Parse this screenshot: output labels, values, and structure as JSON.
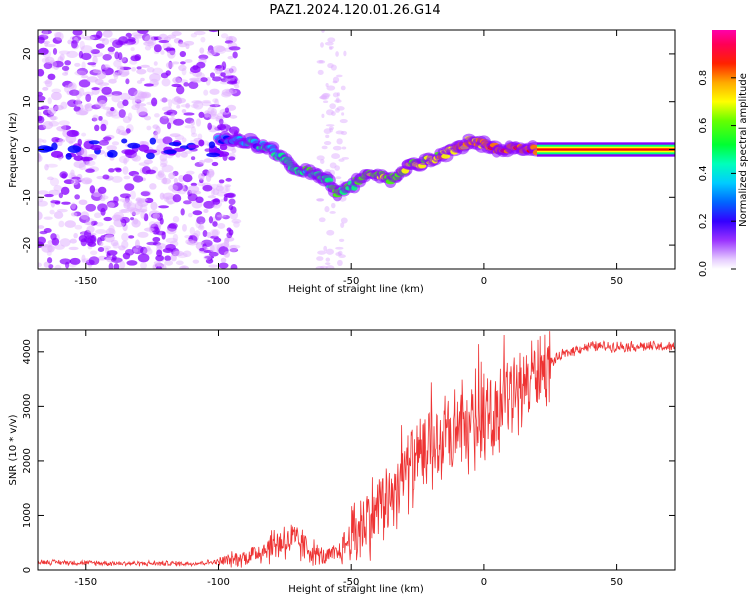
{
  "title": "PAZ1.2024.120.01.26.G14",
  "chart_data": [
    {
      "type": "heatmap",
      "xlabel": "Height of straight line (km)",
      "ylabel": "Frequency (Hz)",
      "xlim": [
        -168,
        72
      ],
      "ylim": [
        -25,
        25
      ],
      "x_ticks": [
        -150,
        -100,
        -50,
        0,
        50
      ],
      "y_ticks": [
        -20,
        -10,
        0,
        10,
        20
      ],
      "colorbar": {
        "label": "Normalized spectral amplitude",
        "range": [
          0,
          1
        ],
        "ticks": [
          0.0,
          0.2,
          0.4,
          0.6,
          0.8
        ],
        "colors": [
          "#ffffff",
          "#e0b0ff",
          "#8800ff",
          "#0000ff",
          "#00c0ff",
          "#00ff80",
          "#40ff00",
          "#ffff00",
          "#ff8000",
          "#ff0000",
          "#ff0088"
        ]
      },
      "ridge": {
        "x": [
          -100,
          -90,
          -80,
          -70,
          -60,
          -55,
          -50,
          -45,
          -40,
          -35,
          -30,
          -25,
          -20,
          -15,
          -10,
          -5,
          0,
          5,
          10,
          15,
          20,
          72
        ],
        "y": [
          2,
          2,
          0,
          -4,
          -6,
          -9,
          -8,
          -5,
          -5,
          -6,
          -4,
          -3,
          -2,
          -1,
          0,
          2,
          1,
          0,
          0,
          0,
          0,
          0
        ]
      }
    },
    {
      "type": "line",
      "xlabel": "Height of straight line (km)",
      "ylabel": "SNR (10 * v/v)",
      "xlim": [
        -168,
        72
      ],
      "ylim": [
        0,
        4400
      ],
      "x_ticks": [
        -150,
        -100,
        -50,
        0,
        50
      ],
      "y_ticks": [
        0,
        1000,
        2000,
        3000,
        4000
      ],
      "color": "#ee3333",
      "series": [
        {
          "x": [
            -168,
            -150,
            -130,
            -110,
            -100,
            -95,
            -90,
            -85,
            -80,
            -75,
            -70,
            -65,
            -60,
            -55,
            -50,
            -45,
            -40,
            -35,
            -30,
            -25,
            -20,
            -15,
            -10,
            -5,
            0,
            5,
            10,
            15,
            20,
            25,
            30,
            35,
            40,
            50,
            60,
            72
          ],
          "values": [
            150,
            130,
            120,
            120,
            150,
            190,
            230,
            330,
            450,
            550,
            500,
            350,
            220,
            300,
            600,
            900,
            1100,
            1400,
            1800,
            2000,
            2200,
            2300,
            2400,
            2600,
            2700,
            2900,
            3200,
            3400,
            3600,
            3800,
            3950,
            4050,
            4100,
            4100,
            4100,
            4080
          ]
        }
      ]
    }
  ]
}
